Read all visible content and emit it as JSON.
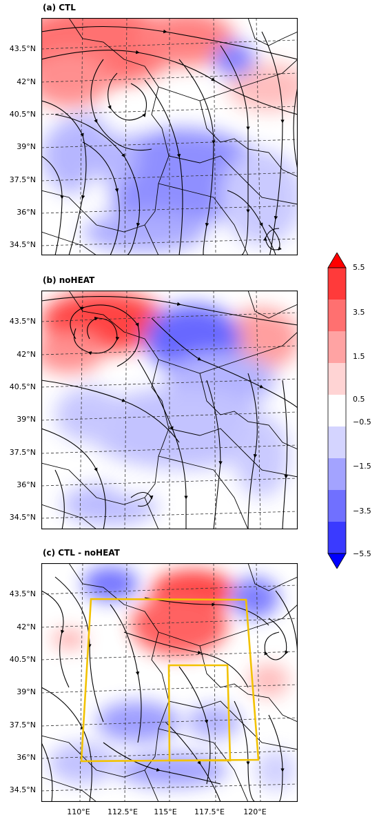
{
  "panels": [
    {
      "title": "(a) CTL"
    },
    {
      "title": "(b) noHEAT"
    },
    {
      "title": "(c) CTL - noHEAT"
    }
  ],
  "lat_labels": [
    "43.5°N",
    "42°N",
    "40.5°N",
    "39°N",
    "37.5°N",
    "36°N",
    "34.5°N"
  ],
  "lon_labels": [
    "110°E",
    "112.5°E",
    "115°E",
    "117.5°E",
    "120°E"
  ],
  "colorbar": {
    "labels": [
      "5.5",
      "3.5",
      "1.5",
      "0.5",
      "−0.5",
      "−1.5",
      "−3.5",
      "−5.5"
    ],
    "colors": [
      "#ff0000",
      "#ff3a3a",
      "#ff7070",
      "#ffa3a3",
      "#ffd4d4",
      "#ffffff",
      "#d4d4ff",
      "#a3a3ff",
      "#7070ff",
      "#3a3aff",
      "#0000ff"
    ]
  },
  "box_color": "#f2c200"
}
